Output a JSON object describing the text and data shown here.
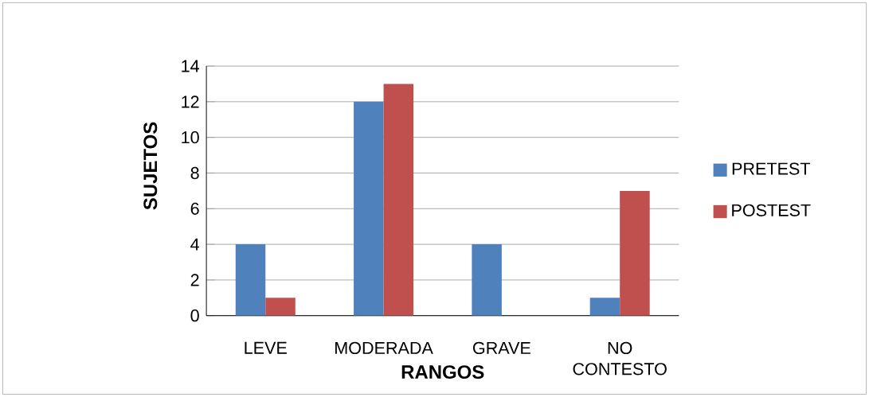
{
  "chart_data": {
    "type": "bar",
    "xlabel": "RANGOS",
    "ylabel": "SUJETOS",
    "categories": [
      "LEVE",
      "MODERADA",
      "GRAVE",
      "NO CONTESTO"
    ],
    "series": [
      {
        "name": "PRETEST",
        "color": "#4f81bd",
        "values": [
          4,
          12,
          4,
          1
        ]
      },
      {
        "name": "POSTEST",
        "color": "#c0504d",
        "values": [
          1,
          13,
          0,
          7
        ]
      }
    ],
    "ylim": [
      0,
      14
    ],
    "yticks": [
      0,
      2,
      4,
      6,
      8,
      10,
      12,
      14
    ],
    "grid": "y",
    "legend": "right"
  }
}
